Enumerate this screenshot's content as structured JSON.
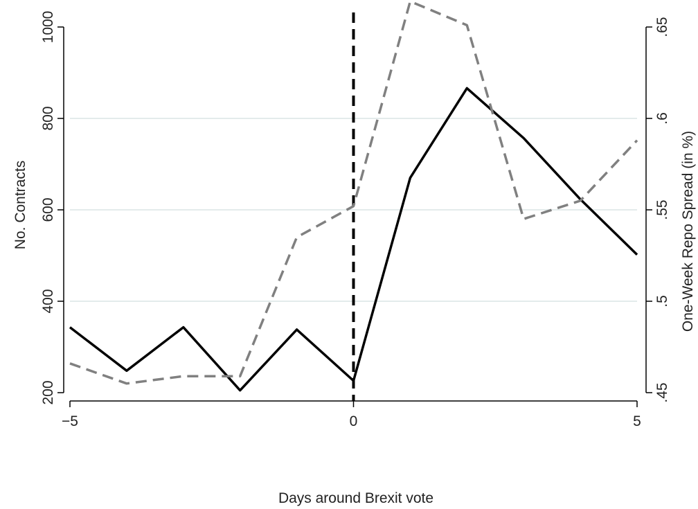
{
  "chart_data": {
    "type": "line",
    "xlabel": "Days around Brexit vote",
    "ylabel": "No. Contracts",
    "y2label": "One-Week Repo Spread (in %)",
    "xlim": [
      -5,
      5
    ],
    "ylim": [
      200,
      1000
    ],
    "y2lim": [
      0.45,
      0.65
    ],
    "x_ticks": [
      -5,
      0,
      5
    ],
    "x_tick_labels": [
      "−5",
      "0",
      "5"
    ],
    "y_ticks": [
      200,
      400,
      600,
      800,
      1000
    ],
    "y_tick_labels": [
      "200",
      "400",
      "600",
      "800",
      "1000"
    ],
    "y2_ticks": [
      0.45,
      0.5,
      0.55,
      0.6,
      0.65
    ],
    "y2_tick_labels": [
      ".45",
      ".5",
      ".55",
      ".6",
      ".65"
    ],
    "grid": "horizontal",
    "event_line_x": 0,
    "x": [
      -5,
      -4,
      -3,
      -2,
      -1,
      0,
      1,
      2,
      3,
      4,
      5
    ],
    "series": [
      {
        "axis": "left",
        "style": "solid",
        "color": "#000000",
        "values": [
          343,
          248,
          343,
          205,
          338,
          226,
          670,
          866,
          757,
          623,
          502
        ]
      },
      {
        "axis": "right",
        "style": "dashed",
        "color": "#808080",
        "values": [
          0.466,
          0.455,
          0.459,
          0.459,
          0.535,
          0.552,
          0.664,
          0.651,
          0.545,
          0.555,
          0.588
        ]
      }
    ]
  }
}
